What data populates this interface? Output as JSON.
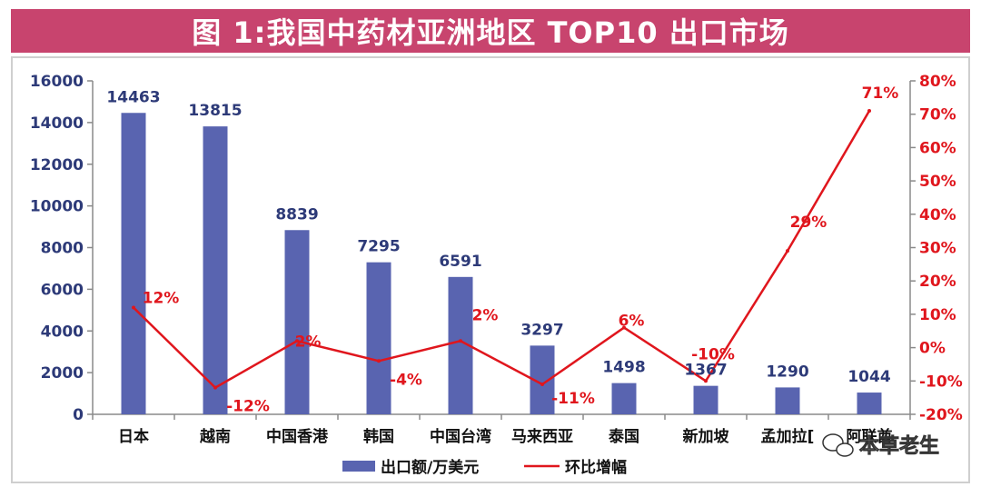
{
  "title": "图 1:我国中药材亚洲地区 TOP10 出口市场",
  "chart_data": {
    "type": "bar",
    "categories": [
      "日本",
      "越南",
      "中国香港",
      "韩国",
      "中国台湾",
      "马来西亚",
      "泰国",
      "新加坡",
      "孟加拉国",
      "阿联酋"
    ],
    "category_display": [
      "日本",
      "越南",
      "中国香港",
      "韩国",
      "中国台湾",
      "马来西亚",
      "泰国",
      "新加坡",
      "孟加拉[",
      "阿联酋"
    ],
    "series": [
      {
        "name": "出口额/万美元",
        "type": "bar",
        "axis": "left",
        "color": "#5964b0",
        "values": [
          14463,
          13815,
          8839,
          7295,
          6591,
          3297,
          1498,
          1367,
          1290,
          1044
        ],
        "labels": [
          "14463",
          "13815",
          "8839",
          "7295",
          "6591",
          "3297",
          "1498",
          "1367",
          "1290",
          "1044"
        ]
      },
      {
        "name": "环比增幅",
        "type": "line",
        "axis": "right",
        "color": "#e0161d",
        "values": [
          12,
          -12,
          2,
          -4,
          2,
          -11,
          6,
          -10,
          29,
          71
        ],
        "labels": [
          "12%",
          "-12%",
          "2%",
          "-4%",
          "2%",
          "-11%",
          "6%",
          "-10%",
          "29%",
          "71%"
        ]
      }
    ],
    "y_left": {
      "lim": [
        0,
        16000
      ],
      "ticks": [
        "0",
        "2000",
        "4000",
        "6000",
        "8000",
        "10000",
        "12000",
        "14000",
        "16000"
      ]
    },
    "y_right": {
      "lim": [
        -20,
        80
      ],
      "ticks": [
        "-20%",
        "-10%",
        "0%",
        "10%",
        "20%",
        "30%",
        "40%",
        "50%",
        "60%",
        "70%",
        "80%"
      ]
    },
    "grid": false,
    "legend": "bottom"
  },
  "watermark": "本草老生"
}
